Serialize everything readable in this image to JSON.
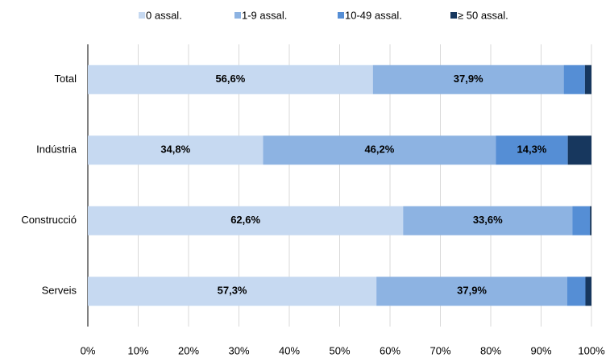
{
  "chart_data": {
    "type": "stacked-bar-horizontal",
    "categories": [
      "Total",
      "Indústria",
      "Construcció",
      "Serveis"
    ],
    "series": [
      {
        "name": "0 assal.",
        "color": "#c6d9f1",
        "values": [
          56.6,
          34.8,
          62.6,
          57.3
        ],
        "value_labels": [
          "56,6%",
          "34,8%",
          "62,6%",
          "57,3%"
        ]
      },
      {
        "name": "1-9 assal.",
        "color": "#8db3e2",
        "values": [
          37.9,
          46.2,
          33.6,
          37.9
        ],
        "value_labels": [
          "37,9%",
          "46,2%",
          "33,6%",
          "37,9%"
        ]
      },
      {
        "name": "10-49 assal.",
        "color": "#558ed5",
        "values": [
          4.2,
          14.3,
          3.5,
          3.6
        ],
        "value_labels": [
          null,
          "14,3%",
          null,
          null
        ]
      },
      {
        "name": "≥ 50 assal.",
        "color": "#17375e",
        "values": [
          1.3,
          4.7,
          0.3,
          1.2
        ],
        "value_labels": [
          null,
          null,
          null,
          null
        ]
      }
    ],
    "xlim": [
      0,
      100
    ],
    "xticks": [
      {
        "value": 0,
        "label": "0%"
      },
      {
        "value": 10,
        "label": "10%"
      },
      {
        "value": 20,
        "label": "20%"
      },
      {
        "value": 30,
        "label": "30%"
      },
      {
        "value": 40,
        "label": "40%"
      },
      {
        "value": 50,
        "label": "50%"
      },
      {
        "value": 60,
        "label": "60%"
      },
      {
        "value": 70,
        "label": "70%"
      },
      {
        "value": 80,
        "label": "80%"
      },
      {
        "value": 90,
        "label": "90%"
      },
      {
        "value": 100,
        "label": "100%"
      }
    ],
    "grid": true,
    "legend": "top"
  }
}
